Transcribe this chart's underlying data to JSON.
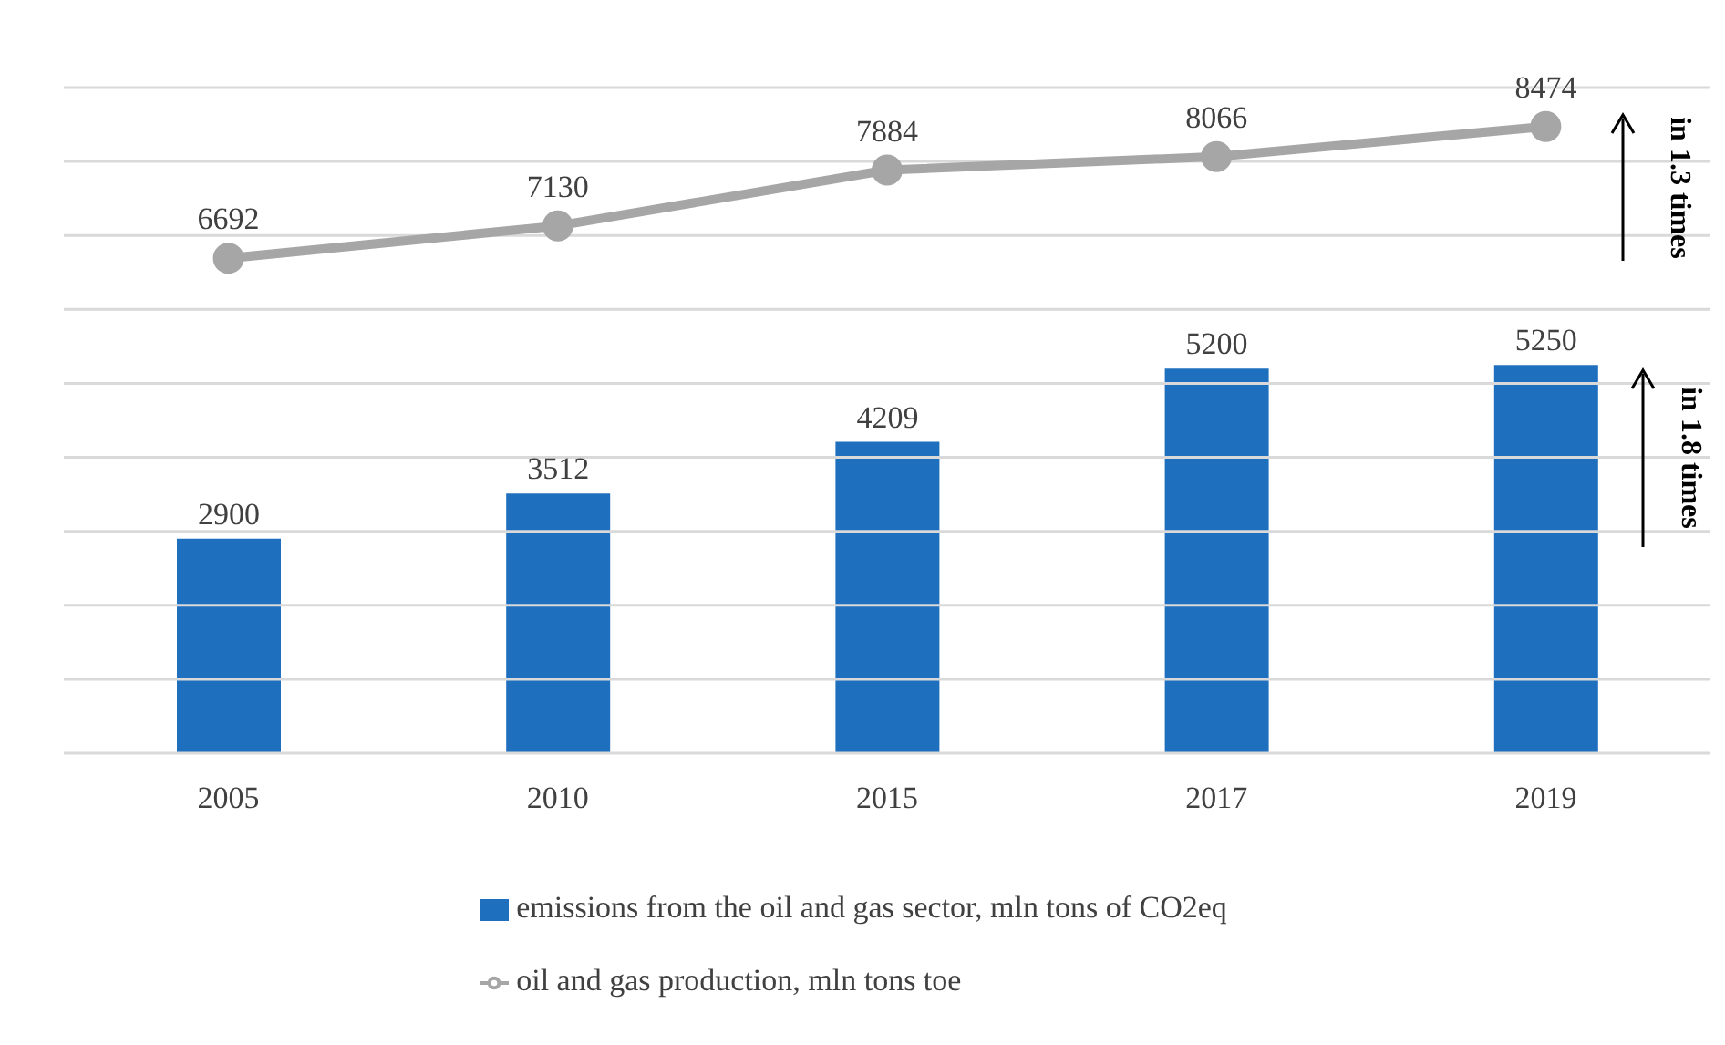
{
  "chart_data": {
    "type": "bar",
    "categories": [
      "2005",
      "2010",
      "2015",
      "2017",
      "2019"
    ],
    "series": [
      {
        "name": "emissions from the oil and gas sector, mln tons of CO2eq",
        "color": "#1f6fbf",
        "values": [
          2900,
          3512,
          4209,
          5200,
          5250
        ]
      },
      {
        "name": "oil and gas production, mln tons toe",
        "type": "line",
        "color": "#a6a6a6",
        "values": [
          6692,
          7130,
          7884,
          8066,
          8474
        ]
      }
    ],
    "ylim": [
      0,
      9000
    ],
    "yticks": [
      {
        "value": 0,
        "label": null
      },
      {
        "value": 1000,
        "label": null
      },
      {
        "value": 2000,
        "label": null
      },
      {
        "value": 3000,
        "label": null
      },
      {
        "value": 4000,
        "label": null
      },
      {
        "value": 5000,
        "label": null
      },
      {
        "value": 6000,
        "label": null
      },
      {
        "value": 7000,
        "label": null
      },
      {
        "value": 8000,
        "label": null
      },
      {
        "value": 9000,
        "label": null
      }
    ],
    "tick_labels": "x",
    "grid": "y",
    "legend": "bottom",
    "marker": "circle",
    "data_labels": true,
    "annotations": [
      "in 1.3 times",
      "in 1.8 times"
    ]
  }
}
